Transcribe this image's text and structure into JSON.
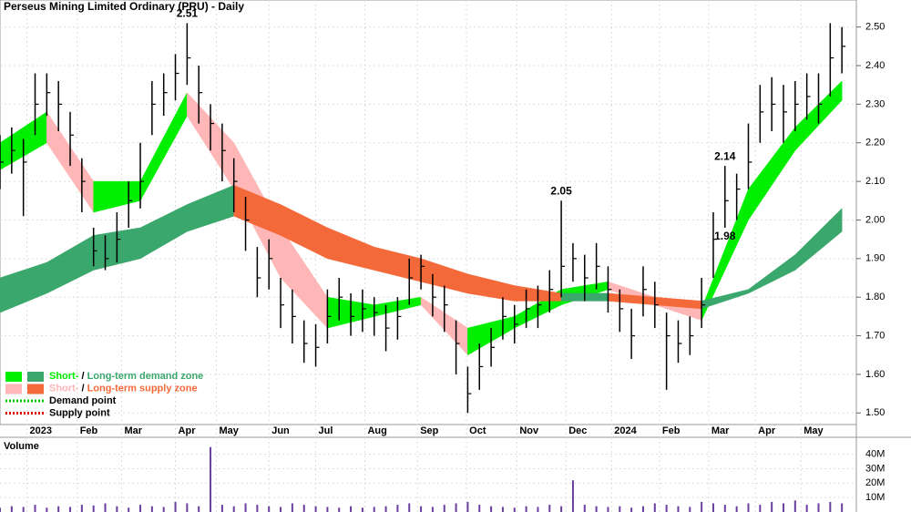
{
  "chart_data": [
    {
      "type": "hlc",
      "title": "Perseus Mining Limited Ordinary (PRU) - Daily",
      "x": [
        0,
        1,
        2,
        3,
        4,
        5,
        6,
        7,
        8,
        9,
        10,
        11,
        12,
        13,
        14,
        15,
        16,
        17,
        18,
        19,
        20,
        21,
        22,
        23,
        24,
        25,
        26,
        27,
        28,
        29,
        30,
        31,
        32,
        33,
        34,
        35,
        36,
        37,
        38,
        39,
        40,
        41,
        42,
        43,
        44,
        45,
        46,
        47,
        48,
        49,
        50,
        51,
        52,
        53,
        54,
        55,
        56,
        57,
        58,
        59,
        60,
        61,
        62,
        63,
        64,
        65,
        66,
        67,
        68,
        69,
        70,
        71,
        72
      ],
      "close": [
        2.15,
        2.18,
        2.15,
        2.3,
        2.33,
        2.3,
        2.22,
        2.1,
        1.92,
        1.9,
        1.95,
        2.05,
        2.1,
        2.3,
        2.33,
        2.38,
        2.42,
        2.33,
        2.25,
        2.18,
        2.1,
        2.0,
        1.85,
        1.9,
        1.78,
        1.75,
        1.68,
        1.67,
        1.75,
        1.8,
        1.75,
        1.77,
        1.76,
        1.72,
        1.75,
        1.85,
        1.88,
        1.8,
        1.78,
        1.68,
        1.55,
        1.62,
        1.67,
        1.75,
        1.73,
        1.77,
        1.78,
        1.82,
        1.88,
        1.9,
        1.85,
        1.88,
        1.82,
        1.77,
        1.7,
        1.82,
        1.78,
        1.7,
        1.68,
        1.7,
        1.78,
        1.95,
        2.05,
        2.08,
        2.15,
        2.28,
        2.3,
        2.28,
        2.3,
        2.32,
        2.3,
        2.42,
        2.45
      ],
      "high": [
        2.22,
        2.24,
        2.21,
        2.38,
        2.38,
        2.36,
        2.28,
        2.16,
        1.98,
        1.96,
        2.02,
        2.1,
        2.2,
        2.36,
        2.38,
        2.43,
        2.51,
        2.4,
        2.3,
        2.25,
        2.16,
        2.06,
        1.93,
        1.95,
        1.85,
        1.82,
        1.74,
        1.73,
        1.82,
        1.85,
        1.81,
        1.82,
        1.8,
        1.78,
        1.8,
        1.9,
        1.91,
        1.86,
        1.83,
        1.74,
        1.62,
        1.68,
        1.72,
        1.8,
        1.78,
        1.82,
        1.83,
        1.87,
        2.05,
        1.94,
        1.91,
        1.94,
        1.88,
        1.82,
        1.77,
        1.88,
        1.84,
        1.76,
        1.74,
        1.75,
        1.85,
        2.02,
        2.14,
        2.12,
        2.25,
        2.35,
        2.37,
        2.35,
        2.36,
        2.38,
        2.38,
        2.51,
        2.5
      ],
      "low": [
        2.08,
        2.12,
        2.01,
        2.22,
        2.27,
        2.23,
        2.14,
        2.02,
        1.88,
        1.87,
        1.89,
        1.98,
        2.03,
        2.22,
        2.27,
        2.31,
        2.35,
        2.25,
        2.18,
        2.1,
        2.02,
        1.92,
        1.8,
        1.82,
        1.72,
        1.68,
        1.63,
        1.62,
        1.68,
        1.74,
        1.7,
        1.71,
        1.7,
        1.66,
        1.69,
        1.78,
        1.82,
        1.75,
        1.71,
        1.6,
        1.5,
        1.56,
        1.62,
        1.69,
        1.68,
        1.72,
        1.72,
        1.76,
        1.8,
        1.84,
        1.79,
        1.82,
        1.76,
        1.71,
        1.64,
        1.75,
        1.72,
        1.56,
        1.63,
        1.65,
        1.72,
        1.85,
        1.98,
        2.0,
        2.08,
        2.2,
        2.23,
        2.2,
        2.23,
        2.26,
        2.25,
        2.32,
        2.38
      ],
      "bar_color": "#000000",
      "bands": [
        {
          "name": "short",
          "demand_color": "#00ee00",
          "supply_color": "#ffb6b6",
          "x": [
            0,
            4,
            8,
            12,
            16,
            20,
            24,
            28,
            32,
            36,
            40,
            44,
            48,
            52,
            56,
            60,
            64,
            68,
            72
          ],
          "lower": [
            2.13,
            2.2,
            2.02,
            2.05,
            2.27,
            2.08,
            1.85,
            1.72,
            1.75,
            1.78,
            1.65,
            1.72,
            1.78,
            1.82,
            1.78,
            1.74,
            2.0,
            2.18,
            2.31
          ],
          "upper": [
            2.2,
            2.28,
            2.1,
            2.1,
            2.33,
            2.2,
            1.98,
            1.8,
            1.78,
            1.8,
            1.72,
            1.75,
            1.82,
            1.84,
            1.8,
            1.77,
            2.08,
            2.24,
            2.36
          ]
        },
        {
          "name": "long",
          "demand_color": "#3aa76d",
          "supply_color": "#f4693a",
          "x": [
            0,
            4,
            8,
            12,
            16,
            20,
            24,
            28,
            32,
            36,
            40,
            44,
            48,
            52,
            56,
            60,
            64,
            68,
            72
          ],
          "lower": [
            1.76,
            1.81,
            1.87,
            1.9,
            1.97,
            2.01,
            1.96,
            1.9,
            1.87,
            1.84,
            1.81,
            1.79,
            1.79,
            1.79,
            1.78,
            1.77,
            1.81,
            1.87,
            1.97
          ],
          "upper": [
            1.85,
            1.89,
            1.96,
            1.98,
            2.04,
            2.09,
            2.04,
            1.98,
            1.93,
            1.9,
            1.86,
            1.83,
            1.81,
            1.81,
            1.8,
            1.79,
            1.82,
            1.91,
            2.03
          ]
        }
      ],
      "annotations": [
        {
          "x": 16,
          "value": 2.51,
          "label": "2.51",
          "pos": "above"
        },
        {
          "x": 48,
          "value": 2.05,
          "label": "2.05",
          "pos": "above"
        },
        {
          "x": 62,
          "value": 2.14,
          "label": "2.14",
          "pos": "above"
        },
        {
          "x": 62,
          "value": 1.98,
          "label": "1.98",
          "pos": "below"
        }
      ],
      "xlim": [
        0,
        73
      ],
      "ylim": [
        1.47,
        2.57
      ],
      "xticks": [
        {
          "value": 2.3,
          "label": "2023"
        },
        {
          "value": 6.6,
          "label": "Feb"
        },
        {
          "value": 10.4,
          "label": "Mar"
        },
        {
          "value": 15,
          "label": "Apr"
        },
        {
          "value": 18.5,
          "label": "May"
        },
        {
          "value": 23,
          "label": "Jun"
        },
        {
          "value": 27,
          "label": "Jul"
        },
        {
          "value": 31.2,
          "label": "Aug"
        },
        {
          "value": 35.7,
          "label": "Sep"
        },
        {
          "value": 39.9,
          "label": "Oct"
        },
        {
          "value": 44.2,
          "label": "Nov"
        },
        {
          "value": 48.4,
          "label": "Dec"
        },
        {
          "value": 52.3,
          "label": "2024"
        },
        {
          "value": 56.4,
          "label": "Feb"
        },
        {
          "value": 60.6,
          "label": "Mar"
        },
        {
          "value": 64.6,
          "label": "Apr"
        },
        {
          "value": 68.5,
          "label": "May"
        }
      ],
      "yticks": [
        {
          "value": 1.5,
          "label": "1.50"
        },
        {
          "value": 1.6,
          "label": "1.60"
        },
        {
          "value": 1.7,
          "label": "1.70"
        },
        {
          "value": 1.8,
          "label": "1.80"
        },
        {
          "value": 1.9,
          "label": "1.90"
        },
        {
          "value": 2.0,
          "label": "2.00"
        },
        {
          "value": 2.1,
          "label": "2.10"
        },
        {
          "value": 2.2,
          "label": "2.20"
        },
        {
          "value": 2.3,
          "label": "2.30"
        },
        {
          "value": 2.4,
          "label": "2.40"
        },
        {
          "value": 2.5,
          "label": "2.50"
        }
      ],
      "grid": true,
      "legend": [
        {
          "short": "Short-",
          "sep": " / ",
          "long": "Long-term demand zone",
          "short_color": "#00ee00",
          "long_color": "#3aa76d"
        },
        {
          "short": "Short-",
          "sep": " / ",
          "long": "Long-term supply zone",
          "short_color": "#ffb6b6",
          "long_color": "#f4693a"
        },
        {
          "text": "Demand point",
          "color": "#00cc00"
        },
        {
          "text": "Supply point",
          "color": "#dd0000"
        }
      ]
    },
    {
      "type": "bar",
      "title": "Volume",
      "color": "#6a3fa0",
      "values": [
        3000000,
        4000000,
        3500000,
        5000000,
        3000000,
        4000000,
        3500000,
        5000000,
        4500000,
        6000000,
        4000000,
        3000000,
        5000000,
        4000000,
        3500000,
        7000000,
        6000000,
        4000000,
        45000000,
        5000000,
        4000000,
        6000000,
        5000000,
        4000000,
        3500000,
        6000000,
        5000000,
        4000000,
        3500000,
        3000000,
        4000000,
        3000000,
        3500000,
        4000000,
        5000000,
        6000000,
        4000000,
        3500000,
        5000000,
        6000000,
        7000000,
        5000000,
        4000000,
        3500000,
        3000000,
        4000000,
        3500000,
        5000000,
        4000000,
        22000000,
        5000000,
        4000000,
        3500000,
        4000000,
        3000000,
        4000000,
        6000000,
        5000000,
        4000000,
        3500000,
        7000000,
        6000000,
        5000000,
        4000000,
        6000000,
        5000000,
        7000000,
        6000000,
        8000000,
        5000000,
        6000000,
        7000000,
        6000000
      ],
      "ylim": [
        0,
        48000000
      ],
      "yticks": [
        {
          "value": 10000000,
          "label": "10M"
        },
        {
          "value": 20000000,
          "label": "20M"
        },
        {
          "value": 30000000,
          "label": "30M"
        },
        {
          "value": 40000000,
          "label": "40M"
        }
      ]
    }
  ]
}
